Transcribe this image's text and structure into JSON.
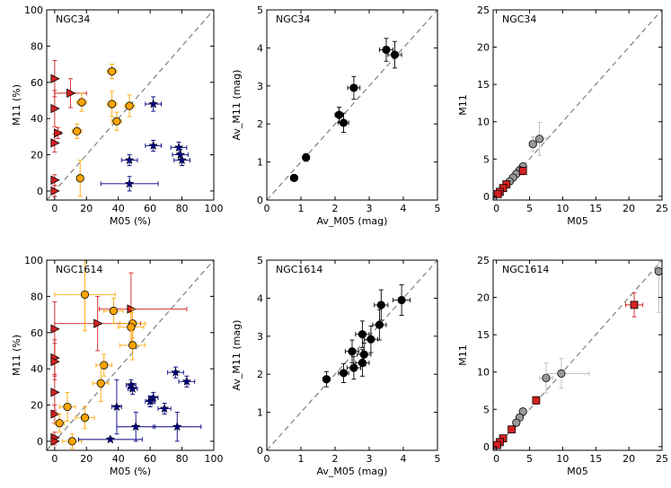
{
  "colors": {
    "orange": "#ffa500",
    "navy": "#000080",
    "red": "#d42020",
    "black": "#000000",
    "gray": "#999999",
    "diag": "#7f7f7f",
    "errlight": "#bbbbbb"
  },
  "chart_data": [
    {
      "id": "p1",
      "type": "scatter",
      "title": "NGC34",
      "xlabel": "M05 (%)",
      "ylabel": "M11 (%)",
      "xlim": [
        -5,
        100
      ],
      "ylim": [
        -5,
        100
      ],
      "xticks": [
        0,
        20,
        40,
        60,
        80,
        100
      ],
      "yticks": [
        0,
        20,
        40,
        60,
        80,
        100
      ],
      "tick_labels_x": [
        "0",
        "20",
        "40",
        "60",
        "80",
        "100"
      ],
      "tick_labels_y": [
        "0",
        "20",
        "40",
        "60",
        "80",
        "100"
      ],
      "series": [
        {
          "name": "triangles",
          "marker": "tri",
          "color": "red",
          "points": [
            [
              0,
              62,
              0,
              0,
              10,
              10
            ],
            [
              0,
              45.5,
              0,
              0,
              10,
              10
            ],
            [
              0,
              26.5,
              0,
              0,
              5,
              5
            ],
            [
              0,
              6,
              0,
              0,
              3,
              3
            ],
            [
              0,
              0,
              0,
              0,
              3,
              3
            ],
            [
              2,
              32,
              2,
              2,
              3,
              3
            ],
            [
              10,
              54,
              10,
              10,
              8,
              8
            ]
          ]
        },
        {
          "name": "circles",
          "marker": "circle",
          "color": "orange",
          "points": [
            [
              36,
              66,
              3,
              3,
              4,
              4
            ],
            [
              36,
              48,
              3,
              3,
              7,
              7
            ],
            [
              47,
              47,
              3,
              3,
              6,
              6
            ],
            [
              39,
              38.5,
              3,
              3,
              5,
              5
            ],
            [
              14,
              33,
              3,
              3,
              4,
              4
            ],
            [
              17,
              49,
              3,
              3,
              5,
              5
            ],
            [
              16,
              7,
              2,
              2,
              10,
              10
            ]
          ]
        },
        {
          "name": "stars",
          "marker": "star",
          "color": "navy",
          "points": [
            [
              62,
              48,
              5,
              5,
              4,
              4
            ],
            [
              62,
              25,
              5,
              5,
              3,
              3
            ],
            [
              78,
              24,
              5,
              5,
              3,
              3
            ],
            [
              79,
              20,
              5,
              5,
              3,
              3
            ],
            [
              80,
              17,
              5,
              5,
              3,
              3
            ],
            [
              47,
              17,
              5,
              5,
              3,
              3
            ],
            [
              47,
              4,
              18,
              18,
              4,
              4
            ]
          ]
        }
      ]
    },
    {
      "id": "p2",
      "type": "scatter",
      "title": "NGC34",
      "xlabel": "Av_M05 (mag)",
      "ylabel": "Av_M11 (mag)",
      "xlim": [
        0,
        5
      ],
      "ylim": [
        0,
        5
      ],
      "xticks": [
        0,
        1,
        2,
        3,
        4,
        5
      ],
      "yticks": [
        0,
        1,
        2,
        3,
        4,
        5
      ],
      "tick_labels_x": [
        "0",
        "1",
        "2",
        "3",
        "4",
        "5"
      ],
      "tick_labels_y": [
        "0",
        "1",
        "2",
        "3",
        "4",
        "5"
      ],
      "series": [
        {
          "name": "data",
          "marker": "circle",
          "color": "black",
          "points": [
            [
              0.8,
              0.58,
              0.1,
              0.1,
              0.08,
              0.08
            ],
            [
              1.15,
              1.12,
              0.1,
              0.1,
              0.1,
              0.1
            ],
            [
              2.12,
              2.24,
              0.12,
              0.12,
              0.2,
              0.2
            ],
            [
              2.25,
              2.03,
              0.15,
              0.15,
              0.25,
              0.25
            ],
            [
              2.55,
              2.95,
              0.18,
              0.18,
              0.3,
              0.3
            ],
            [
              3.5,
              3.95,
              0.2,
              0.2,
              0.3,
              0.3
            ],
            [
              3.75,
              3.82,
              0.2,
              0.2,
              0.35,
              0.35
            ]
          ]
        }
      ]
    },
    {
      "id": "p3",
      "type": "scatter",
      "title": "NGC34",
      "xlabel": "M05",
      "ylabel": "M11",
      "xlim": [
        -0.5,
        25
      ],
      "ylim": [
        -0.5,
        25
      ],
      "xticks": [
        0,
        5,
        10,
        15,
        20,
        25
      ],
      "yticks": [
        0,
        5,
        10,
        15,
        20,
        25
      ],
      "tick_labels_x": [
        "0",
        "5",
        "10",
        "15",
        "20",
        "25"
      ],
      "tick_labels_y": [
        "0",
        "5",
        "10",
        "15",
        "20",
        "25"
      ],
      "series": [
        {
          "name": "circles",
          "marker": "circle",
          "color": "gray",
          "points": [
            [
              5.5,
              7,
              0.5,
              0.5,
              1,
              1
            ],
            [
              6.5,
              7.7,
              1,
              1,
              2.2,
              2.2
            ],
            [
              4,
              4,
              0.5,
              0.5,
              0.5,
              0.5
            ],
            [
              3.5,
              3.5,
              0.4,
              0.4,
              0.5,
              0.5
            ],
            [
              3,
              3,
              0.3,
              0.3,
              0.3,
              0.3
            ],
            [
              2.5,
              2.5,
              0.3,
              0.3,
              0.3,
              0.3
            ],
            [
              2,
              2,
              0.2,
              0.2,
              0.2,
              0.2
            ]
          ]
        },
        {
          "name": "squares",
          "marker": "square",
          "color": "red",
          "points": [
            [
              4,
              3.4,
              0.4,
              0.4,
              0.5,
              0.5
            ],
            [
              1.5,
              1.6,
              0.3,
              0.3,
              0.2,
              0.2
            ],
            [
              1,
              1.1,
              0.2,
              0.2,
              0.2,
              0.2
            ],
            [
              0.5,
              0.6,
              0.1,
              0.1,
              0.1,
              0.1
            ],
            [
              0.2,
              0.3,
              0.1,
              0.1,
              0.1,
              0.1
            ]
          ]
        }
      ]
    },
    {
      "id": "p4",
      "type": "scatter",
      "title": "NGC1614",
      "xlabel": "M05 (%)",
      "ylabel": "M11 (%)",
      "xlim": [
        -5,
        100
      ],
      "ylim": [
        -5,
        100
      ],
      "xticks": [
        0,
        20,
        40,
        60,
        80,
        100
      ],
      "yticks": [
        0,
        20,
        40,
        60,
        80,
        100
      ],
      "tick_labels_x": [
        "0",
        "20",
        "40",
        "60",
        "80",
        "100"
      ],
      "tick_labels_y": [
        "0",
        "20",
        "40",
        "60",
        "80",
        "100"
      ],
      "series": [
        {
          "name": "triangles",
          "marker": "tri",
          "color": "red",
          "points": [
            [
              0,
              62,
              0,
              0,
              15,
              15
            ],
            [
              0,
              46,
              0,
              0,
              10,
              10
            ],
            [
              0,
              44,
              0,
              0,
              10,
              10
            ],
            [
              0,
              27,
              0,
              0,
              10,
              10
            ],
            [
              0,
              15,
              0,
              0,
              5,
              5
            ],
            [
              0,
              2,
              0,
              0,
              3,
              3
            ],
            [
              0,
              0,
              0,
              0,
              2,
              2
            ],
            [
              27,
              65,
              27,
              27,
              15,
              15
            ],
            [
              48,
              73,
              20,
              35,
              20,
              20
            ]
          ]
        },
        {
          "name": "circles",
          "marker": "circle",
          "color": "orange",
          "points": [
            [
              19,
              81,
              19,
              19,
              20,
              20
            ],
            [
              37,
              72,
              6,
              6,
              7,
              7
            ],
            [
              49,
              65,
              8,
              8,
              8,
              8
            ],
            [
              48,
              63,
              8,
              8,
              8,
              8
            ],
            [
              49,
              53,
              8,
              8,
              8,
              8
            ],
            [
              31,
              42,
              5,
              5,
              6,
              6
            ],
            [
              29,
              32,
              5,
              5,
              10,
              10
            ],
            [
              8,
              19,
              5,
              5,
              8,
              8
            ],
            [
              19,
              13,
              6,
              6,
              6,
              6
            ],
            [
              3,
              10,
              3,
              3,
              5,
              5
            ],
            [
              11,
              0,
              6,
              6,
              4,
              4
            ]
          ]
        },
        {
          "name": "stars",
          "marker": "star",
          "color": "navy",
          "points": [
            [
              76,
              38,
              5,
              5,
              3,
              3
            ],
            [
              83,
              33,
              5,
              5,
              3,
              3
            ],
            [
              48,
              31,
              3,
              3,
              3,
              3
            ],
            [
              49,
              29,
              3,
              3,
              3,
              3
            ],
            [
              62,
              24,
              3,
              3,
              3,
              3
            ],
            [
              60,
              22,
              3,
              3,
              3,
              3
            ],
            [
              69,
              18,
              4,
              4,
              3,
              3
            ],
            [
              39,
              19,
              3,
              3,
              15,
              15
            ],
            [
              51,
              8,
              12,
              12,
              8,
              8
            ],
            [
              77,
              8,
              15,
              15,
              8,
              8
            ],
            [
              35,
              1,
              20,
              20,
              1,
              1
            ]
          ]
        }
      ]
    },
    {
      "id": "p5",
      "type": "scatter",
      "title": "NGC1614",
      "xlabel": "Av_M05 (mag)",
      "ylabel": "Av_M11 (mag)",
      "xlim": [
        0,
        5
      ],
      "ylim": [
        0,
        5
      ],
      "xticks": [
        0,
        1,
        2,
        3,
        4,
        5
      ],
      "yticks": [
        0,
        1,
        2,
        3,
        4,
        5
      ],
      "tick_labels_x": [
        "0",
        "1",
        "2",
        "3",
        "4",
        "5"
      ],
      "tick_labels_y": [
        "0",
        "1",
        "2",
        "3",
        "4",
        "5"
      ],
      "series": [
        {
          "name": "data",
          "marker": "circle",
          "color": "black",
          "points": [
            [
              1.75,
              1.87,
              0.1,
              0.1,
              0.2,
              0.2
            ],
            [
              2.25,
              2.03,
              0.15,
              0.15,
              0.25,
              0.25
            ],
            [
              2.55,
              2.17,
              0.2,
              0.2,
              0.3,
              0.3
            ],
            [
              2.8,
              2.3,
              0.2,
              0.2,
              0.35,
              0.35
            ],
            [
              2.85,
              2.52,
              0.2,
              0.2,
              0.3,
              0.3
            ],
            [
              2.5,
              2.6,
              0.2,
              0.2,
              0.3,
              0.3
            ],
            [
              2.8,
              3.05,
              0.2,
              0.2,
              0.35,
              0.35
            ],
            [
              3.05,
              2.92,
              0.2,
              0.2,
              0.35,
              0.35
            ],
            [
              3.3,
              3.3,
              0.2,
              0.2,
              0.4,
              0.4
            ],
            [
              3.35,
              3.82,
              0.2,
              0.2,
              0.4,
              0.4
            ],
            [
              3.95,
              3.95,
              0.25,
              0.25,
              0.4,
              0.4
            ]
          ]
        }
      ]
    },
    {
      "id": "p6",
      "type": "scatter",
      "title": "NGC1614",
      "xlabel": "M05",
      "ylabel": "M11",
      "xlim": [
        -0.5,
        25
      ],
      "ylim": [
        -0.5,
        25
      ],
      "xticks": [
        0,
        5,
        10,
        15,
        20,
        25
      ],
      "yticks": [
        0,
        5,
        10,
        15,
        20,
        25
      ],
      "tick_labels_x": [
        "0",
        "5",
        "10",
        "15",
        "20",
        "25"
      ],
      "tick_labels_y": [
        "0",
        "5",
        "10",
        "15",
        "20",
        "25"
      ],
      "series": [
        {
          "name": "circles",
          "marker": "circle",
          "color": "gray",
          "points": [
            [
              7.5,
              9.2,
              1,
              1,
              2,
              2
            ],
            [
              9.8,
              9.8,
              2.3,
              4.2,
              2,
              2
            ],
            [
              4,
              4.7,
              0.3,
              0.3,
              0.3,
              0.3
            ],
            [
              3.5,
              3.9,
              0.3,
              0.3,
              0.3,
              0.3
            ],
            [
              3,
              3.2,
              0.3,
              0.3,
              0.3,
              0.3
            ],
            [
              24.5,
              23.5,
              0.5,
              0.5,
              5.5,
              5.5
            ]
          ]
        },
        {
          "name": "squares",
          "marker": "square",
          "color": "red",
          "points": [
            [
              20.8,
              19,
              1.3,
              1.3,
              1.6,
              1.6
            ],
            [
              6,
              6.2,
              0.5,
              0.5,
              0.5,
              0.5
            ],
            [
              2.3,
              2.3,
              0.3,
              0.3,
              0.3,
              0.3
            ],
            [
              1,
              1.1,
              0.2,
              0.2,
              0.2,
              0.2
            ],
            [
              0.5,
              0.6,
              0.2,
              0.2,
              0.2,
              0.2
            ],
            [
              0.1,
              0.2,
              0.1,
              0.1,
              0.1,
              0.1
            ]
          ]
        }
      ]
    }
  ]
}
